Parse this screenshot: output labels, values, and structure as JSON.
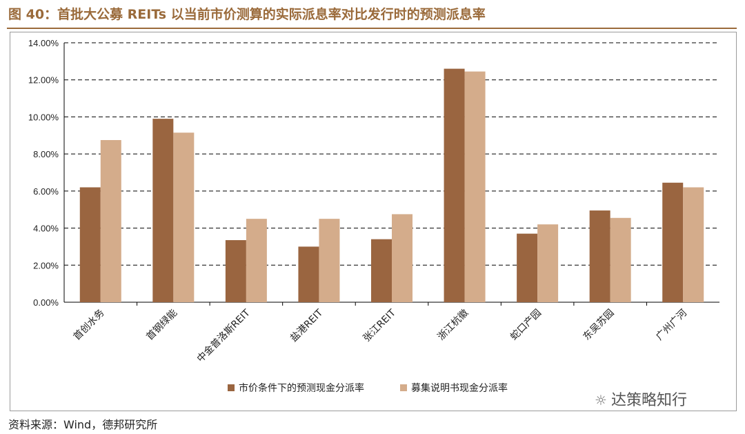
{
  "header": {
    "title": "图 40：首批大公募 REITs 以当前市价测算的实际派息率对比发行时的预测派息率"
  },
  "footer": {
    "source": "资料来源：Wind，德邦研究所"
  },
  "watermark": {
    "icon": "wechat-icon",
    "text": "达策略知行"
  },
  "colors": {
    "series1": "#9a6540",
    "series2": "#d4ac8b",
    "accent": "#9a6a3a",
    "grid": "#000000"
  },
  "chart_data": {
    "type": "bar",
    "categories": [
      "首创水务",
      "首钢绿能",
      "中金普洛斯REIT",
      "盐港REIT",
      "张江REIT",
      "浙江杭徽",
      "蛇口产园",
      "东吴苏园",
      "广州广河"
    ],
    "series": [
      {
        "name": "市价条件下的预测现金分派率",
        "values": [
          6.2,
          9.9,
          3.35,
          3.0,
          3.4,
          12.6,
          3.7,
          4.95,
          6.45
        ]
      },
      {
        "name": "募集说明书现金分派率",
        "values": [
          8.75,
          9.15,
          4.5,
          4.5,
          4.75,
          12.45,
          4.2,
          4.55,
          6.2
        ]
      }
    ],
    "ylim": [
      0,
      14
    ],
    "yticks": [
      "0.00%",
      "2.00%",
      "4.00%",
      "6.00%",
      "8.00%",
      "10.00%",
      "12.00%",
      "14.00%"
    ],
    "ytick_values": [
      0,
      2,
      4,
      6,
      8,
      10,
      12,
      14
    ],
    "grid": true,
    "grid_style": "dashed",
    "legend_position": "bottom"
  }
}
